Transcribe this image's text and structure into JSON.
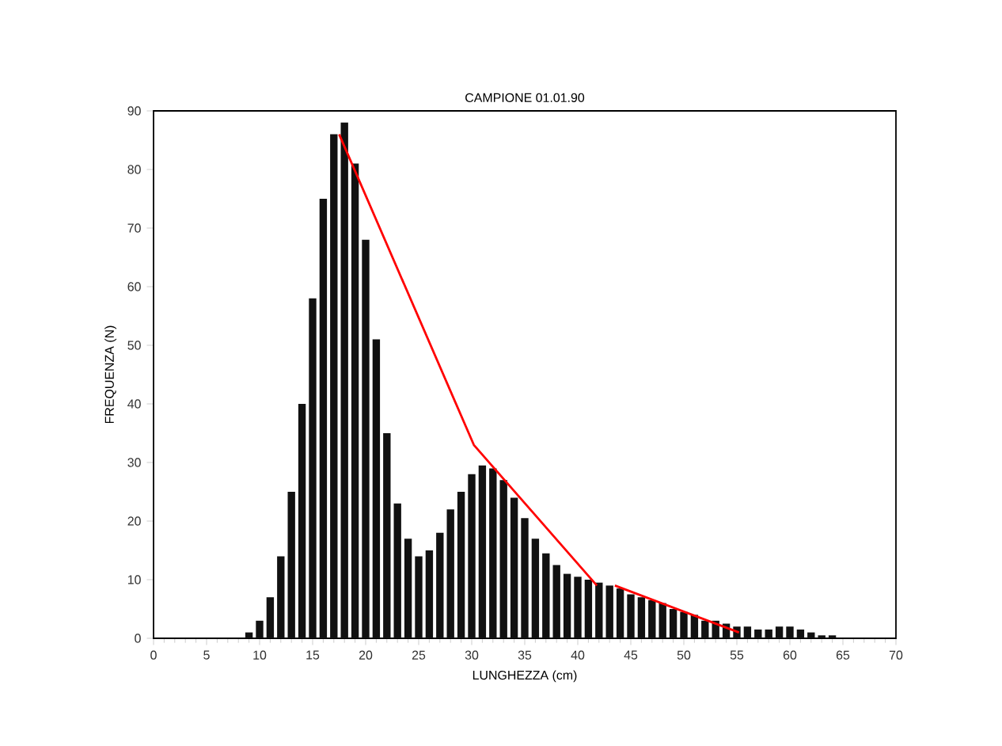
{
  "chart_data": {
    "type": "histogram",
    "title": "CAMPIONE 01.01.90",
    "xlabel": "LUNGHEZZA (cm)",
    "ylabel": "FREQUENZA (N)",
    "xlim": [
      0,
      70
    ],
    "ylim": [
      0,
      90
    ],
    "xticks": [
      0,
      5,
      10,
      15,
      20,
      25,
      30,
      35,
      40,
      45,
      50,
      55,
      60,
      65,
      70
    ],
    "yticks": [
      0,
      10,
      20,
      30,
      40,
      50,
      60,
      70,
      80,
      90
    ],
    "grid": false,
    "series": [
      {
        "color": "#111111",
        "bins": [
          8.5,
          9.5,
          10.5,
          11.5,
          12.5,
          13.5,
          14.5,
          15.5,
          16.5,
          17.5,
          18.5,
          19.5,
          20.5,
          21.5,
          22.5,
          23.5,
          24.5,
          25.5,
          26.5,
          27.5,
          28.5,
          29.5,
          30.5,
          31.5,
          32.5,
          33.5,
          34.5,
          35.5,
          36.5,
          37.5,
          38.5,
          39.5,
          40.5,
          41.5,
          42.5,
          43.5,
          44.5,
          45.5,
          46.5,
          47.5,
          48.5,
          49.5,
          50.5,
          51.5,
          52.5,
          53.5,
          54.5,
          55.5,
          56.5,
          57.5,
          58.5,
          59.5,
          60.5,
          61.5,
          62.5,
          63.5,
          64.5
        ],
        "values": [
          1,
          3,
          7,
          14,
          25,
          40,
          58,
          75,
          86,
          88,
          81,
          68,
          51,
          35,
          23,
          17,
          14,
          15,
          18,
          22,
          25,
          28,
          29.5,
          29,
          27,
          24,
          20.5,
          17,
          14.5,
          12.5,
          11,
          10.5,
          10,
          9.5,
          9,
          8.5,
          7.5,
          7,
          6.5,
          6,
          5,
          4.5,
          4,
          3,
          3,
          2.5,
          2,
          2,
          1.5,
          1.5,
          2,
          2,
          1.5,
          1,
          0.5,
          0.5
        ]
      },
      {
        "type": "line",
        "color": "#ff0000",
        "x": [
          17.5,
          30.2,
          41.8,
          42.6,
          43.5,
          55.2
        ],
        "values": [
          86,
          33,
          9,
          null,
          9,
          1
        ]
      }
    ]
  }
}
